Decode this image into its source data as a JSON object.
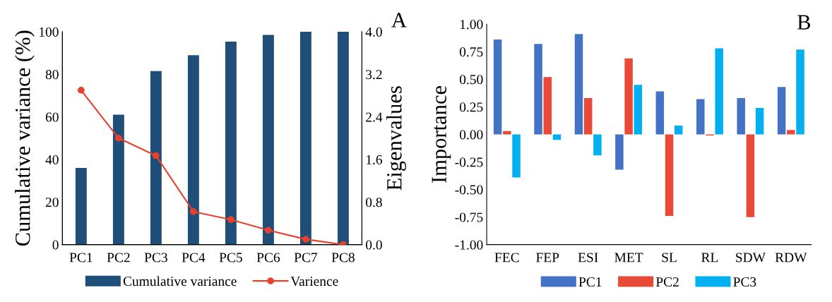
{
  "chart_data": [
    {
      "type": "bar",
      "categories": [
        "PC1",
        "PC2",
        "PC3",
        "PC4",
        "PC5",
        "PC6",
        "PC7",
        "PC8"
      ],
      "ylabel": "Cumulative variance (%)",
      "y2label": "Eigenvalues",
      "annotations": [
        "A"
      ],
      "series": [
        {
          "name": "Cumulative variance",
          "type": "bar",
          "color": "#1f4e79",
          "values": [
            36,
            61,
            81.5,
            89,
            95.3,
            98.5,
            100,
            100
          ]
        },
        {
          "name": "Varience",
          "type": "line",
          "axis": "y2",
          "color": "#e8412c",
          "marker": "circle",
          "values": [
            2.9,
            2.0,
            1.67,
            0.62,
            0.47,
            0.27,
            0.1,
            0.0
          ]
        }
      ],
      "ylim": [
        0,
        100
      ],
      "yticks": [
        0,
        20,
        40,
        60,
        80,
        100
      ],
      "y2lim": [
        0,
        4.0
      ],
      "y2ticks": [
        {
          "value": 0,
          "label": "0.0"
        },
        {
          "value": 0.8,
          "label": "0.8"
        },
        {
          "value": 1.6,
          "label": "1.6"
        },
        {
          "value": 2.4,
          "label": "2.4"
        },
        {
          "value": 3.2,
          "label": "3.2"
        },
        {
          "value": 4.0,
          "label": "4.0"
        }
      ],
      "grid": false,
      "legend": "bottom"
    },
    {
      "type": "bar",
      "categories": [
        "FEC",
        "FEP",
        "ESI",
        "MET",
        "SL",
        "RL",
        "SDW",
        "RDW"
      ],
      "ylabel": "Importance",
      "annotations": [
        "B"
      ],
      "series": [
        {
          "name": "PC1",
          "color": "#4472c4",
          "values": [
            0.86,
            0.82,
            0.91,
            -0.32,
            0.39,
            0.32,
            0.33,
            0.43
          ]
        },
        {
          "name": "PC2",
          "color": "#e84a37",
          "values": [
            0.03,
            0.52,
            0.33,
            0.69,
            -0.74,
            -0.01,
            -0.75,
            0.04
          ]
        },
        {
          "name": "PC3",
          "color": "#00b0f0",
          "values": [
            -0.39,
            -0.05,
            -0.19,
            0.45,
            0.08,
            0.78,
            0.24,
            0.77
          ]
        }
      ],
      "ylim": [
        -1.0,
        1.0
      ],
      "yticks": [
        {
          "value": -1.0,
          "label": "-1.00"
        },
        {
          "value": -0.75,
          "label": "-0.75"
        },
        {
          "value": -0.5,
          "label": "-0.50"
        },
        {
          "value": -0.25,
          "label": "-0.25"
        },
        {
          "value": 0,
          "label": "0.00"
        },
        {
          "value": 0.25,
          "label": "0.25"
        },
        {
          "value": 0.5,
          "label": "0.50"
        },
        {
          "value": 0.75,
          "label": "0.75"
        },
        {
          "value": 1.0,
          "label": "1.00"
        }
      ],
      "grid": false,
      "legend": "bottom"
    }
  ]
}
